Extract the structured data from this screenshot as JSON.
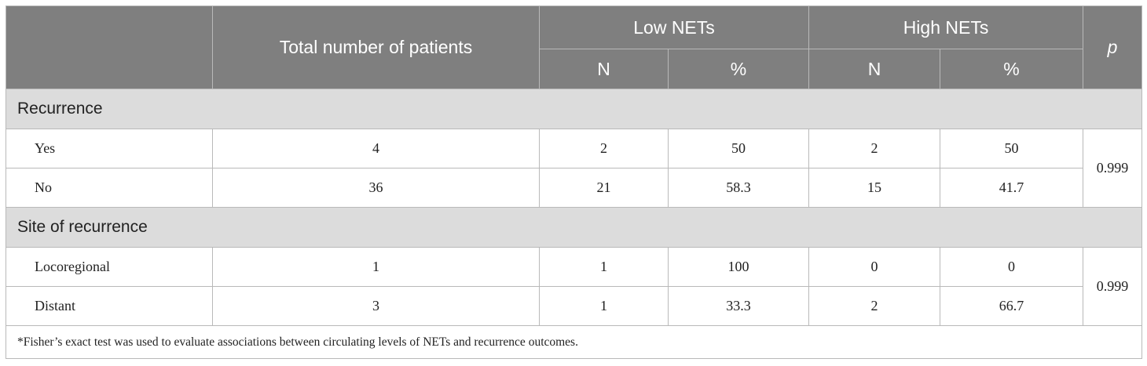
{
  "header": {
    "total": "Total number of patients",
    "low_nets": "Low NETs",
    "high_nets": "High NETs",
    "p": "p",
    "n": "N",
    "pct": "%"
  },
  "sections": [
    {
      "title": "Recurrence",
      "p_value": "0.999",
      "rows": [
        {
          "label": "Yes",
          "total": "4",
          "low_n": "2",
          "low_pct": "50",
          "high_n": "2",
          "high_pct": "50"
        },
        {
          "label": "No",
          "total": "36",
          "low_n": "21",
          "low_pct": "58.3",
          "high_n": "15",
          "high_pct": "41.7"
        }
      ]
    },
    {
      "title": "Site of recurrence",
      "p_value": "0.999",
      "rows": [
        {
          "label": "Locoregional",
          "total": "1",
          "low_n": "1",
          "low_pct": "100",
          "high_n": "0",
          "high_pct": "0"
        },
        {
          "label": "Distant",
          "total": "3",
          "low_n": "1",
          "low_pct": "33.3",
          "high_n": "2",
          "high_pct": "66.7"
        }
      ]
    }
  ],
  "footnote": "*Fisher’s exact test was used to evaluate associations between circulating levels of NETs and recurrence outcomes."
}
